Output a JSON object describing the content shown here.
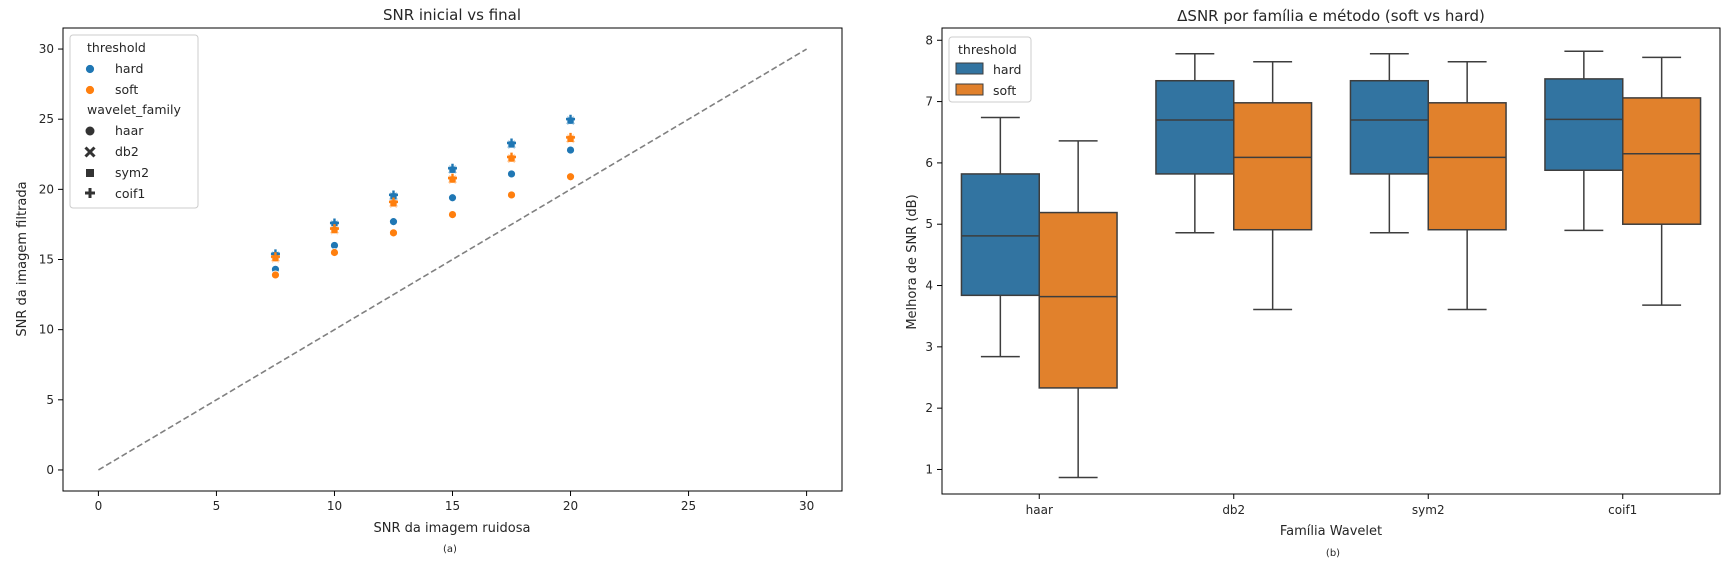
{
  "chart_data": [
    {
      "type": "scatter",
      "title": "SNR inicial vs final",
      "xlabel": "SNR da imagem ruidosa",
      "ylabel": "SNR da imagem filtrada",
      "caption": "(a)",
      "xlim": [
        -1.5,
        31.5
      ],
      "ylim": [
        -1.5,
        31.5
      ],
      "xticks": [
        "0",
        "5",
        "10",
        "15",
        "20",
        "25",
        "30"
      ],
      "yticks": [
        "0",
        "5",
        "10",
        "15",
        "20",
        "25",
        "30"
      ],
      "reference_line": {
        "from": [
          0,
          0
        ],
        "to": [
          30,
          30
        ],
        "style": "dashed",
        "color": "#808080"
      },
      "grid": false,
      "legend": {
        "placement": "top-left",
        "hue_title": "threshold",
        "style_title": "wavelet_family",
        "hue": [
          {
            "label": "hard",
            "color": "#1f77b4"
          },
          {
            "label": "soft",
            "color": "#ff7f0e"
          }
        ],
        "style": [
          {
            "label": "haar",
            "marker": "circle"
          },
          {
            "label": "db2",
            "marker": "x"
          },
          {
            "label": "sym2",
            "marker": "square"
          },
          {
            "label": "coif1",
            "marker": "plus"
          }
        ]
      },
      "x": [
        7.5,
        10,
        12.5,
        15,
        17.5,
        20
      ],
      "series": [
        {
          "threshold": "hard",
          "wavelet_family": "haar",
          "color": "#1f77b4",
          "marker": "circle",
          "y": [
            14.3,
            16.0,
            17.7,
            19.4,
            21.1,
            22.8
          ]
        },
        {
          "threshold": "soft",
          "wavelet_family": "haar",
          "color": "#ff7f0e",
          "marker": "circle",
          "y": [
            13.9,
            15.5,
            16.9,
            18.2,
            19.6,
            20.9
          ]
        },
        {
          "threshold": "hard",
          "wavelet_family": "db2",
          "color": "#1f77b4",
          "marker": "x",
          "y": [
            15.3,
            17.5,
            19.5,
            21.4,
            23.2,
            24.9
          ]
        },
        {
          "threshold": "soft",
          "wavelet_family": "db2",
          "color": "#ff7f0e",
          "marker": "x",
          "y": [
            15.1,
            17.1,
            19.0,
            20.7,
            22.2,
            23.6
          ]
        },
        {
          "threshold": "hard",
          "wavelet_family": "sym2",
          "color": "#1f77b4",
          "marker": "square",
          "y": [
            15.3,
            17.5,
            19.5,
            21.4,
            23.2,
            24.9
          ]
        },
        {
          "threshold": "soft",
          "wavelet_family": "sym2",
          "color": "#ff7f0e",
          "marker": "square",
          "y": [
            15.1,
            17.1,
            19.0,
            20.7,
            22.2,
            23.6
          ]
        },
        {
          "threshold": "hard",
          "wavelet_family": "coif1",
          "color": "#1f77b4",
          "marker": "plus",
          "y": [
            15.4,
            17.6,
            19.6,
            21.5,
            23.3,
            25.0
          ]
        },
        {
          "threshold": "soft",
          "wavelet_family": "coif1",
          "color": "#ff7f0e",
          "marker": "plus",
          "y": [
            15.2,
            17.2,
            19.1,
            20.8,
            22.3,
            23.7
          ]
        }
      ]
    },
    {
      "type": "box",
      "title": "ΔSNR por família e método (soft vs hard)",
      "xlabel": "Família Wavelet",
      "ylabel": "Melhora de SNR (dB)",
      "caption": "(b)",
      "ylim": [
        0.6,
        8.2
      ],
      "yticks": [
        "1",
        "2",
        "3",
        "4",
        "5",
        "6",
        "7",
        "8"
      ],
      "grid": false,
      "categories": [
        "haar",
        "db2",
        "sym2",
        "coif1"
      ],
      "legend": {
        "placement": "top-left",
        "title": "threshold",
        "entries": [
          {
            "label": "hard",
            "color": "#3274a1"
          },
          {
            "label": "soft",
            "color": "#e1812c"
          }
        ]
      },
      "series": [
        {
          "name": "hard",
          "color": "#3274a1",
          "boxes": [
            {
              "whislo": 2.84,
              "q1": 3.84,
              "med": 4.81,
              "q3": 5.82,
              "whishi": 6.74
            },
            {
              "whislo": 4.86,
              "q1": 5.82,
              "med": 6.7,
              "q3": 7.34,
              "whishi": 7.78
            },
            {
              "whislo": 4.86,
              "q1": 5.82,
              "med": 6.7,
              "q3": 7.34,
              "whishi": 7.78
            },
            {
              "whislo": 4.9,
              "q1": 5.88,
              "med": 6.71,
              "q3": 7.37,
              "whishi": 7.82
            }
          ]
        },
        {
          "name": "soft",
          "color": "#e1812c",
          "boxes": [
            {
              "whislo": 0.87,
              "q1": 2.33,
              "med": 3.82,
              "q3": 5.19,
              "whishi": 6.36
            },
            {
              "whislo": 3.61,
              "q1": 4.91,
              "med": 6.09,
              "q3": 6.98,
              "whishi": 7.65
            },
            {
              "whislo": 3.61,
              "q1": 4.91,
              "med": 6.09,
              "q3": 6.98,
              "whishi": 7.65
            },
            {
              "whislo": 3.68,
              "q1": 5.0,
              "med": 6.15,
              "q3": 7.06,
              "whishi": 7.72
            }
          ]
        }
      ]
    }
  ]
}
